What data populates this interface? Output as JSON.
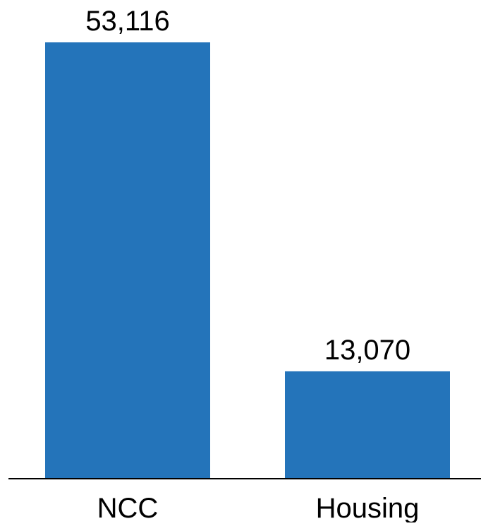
{
  "chart_data": {
    "type": "bar",
    "title": "",
    "xlabel": "",
    "ylabel": "",
    "categories": [
      "NCC",
      "Housing"
    ],
    "values": [
      53116,
      13070
    ],
    "value_labels": [
      "53,116",
      "13,070"
    ],
    "ylim": [
      0,
      53116
    ],
    "grid": false,
    "legend": "none",
    "bar_color": "#2474ba",
    "axis_color": "#000000"
  }
}
